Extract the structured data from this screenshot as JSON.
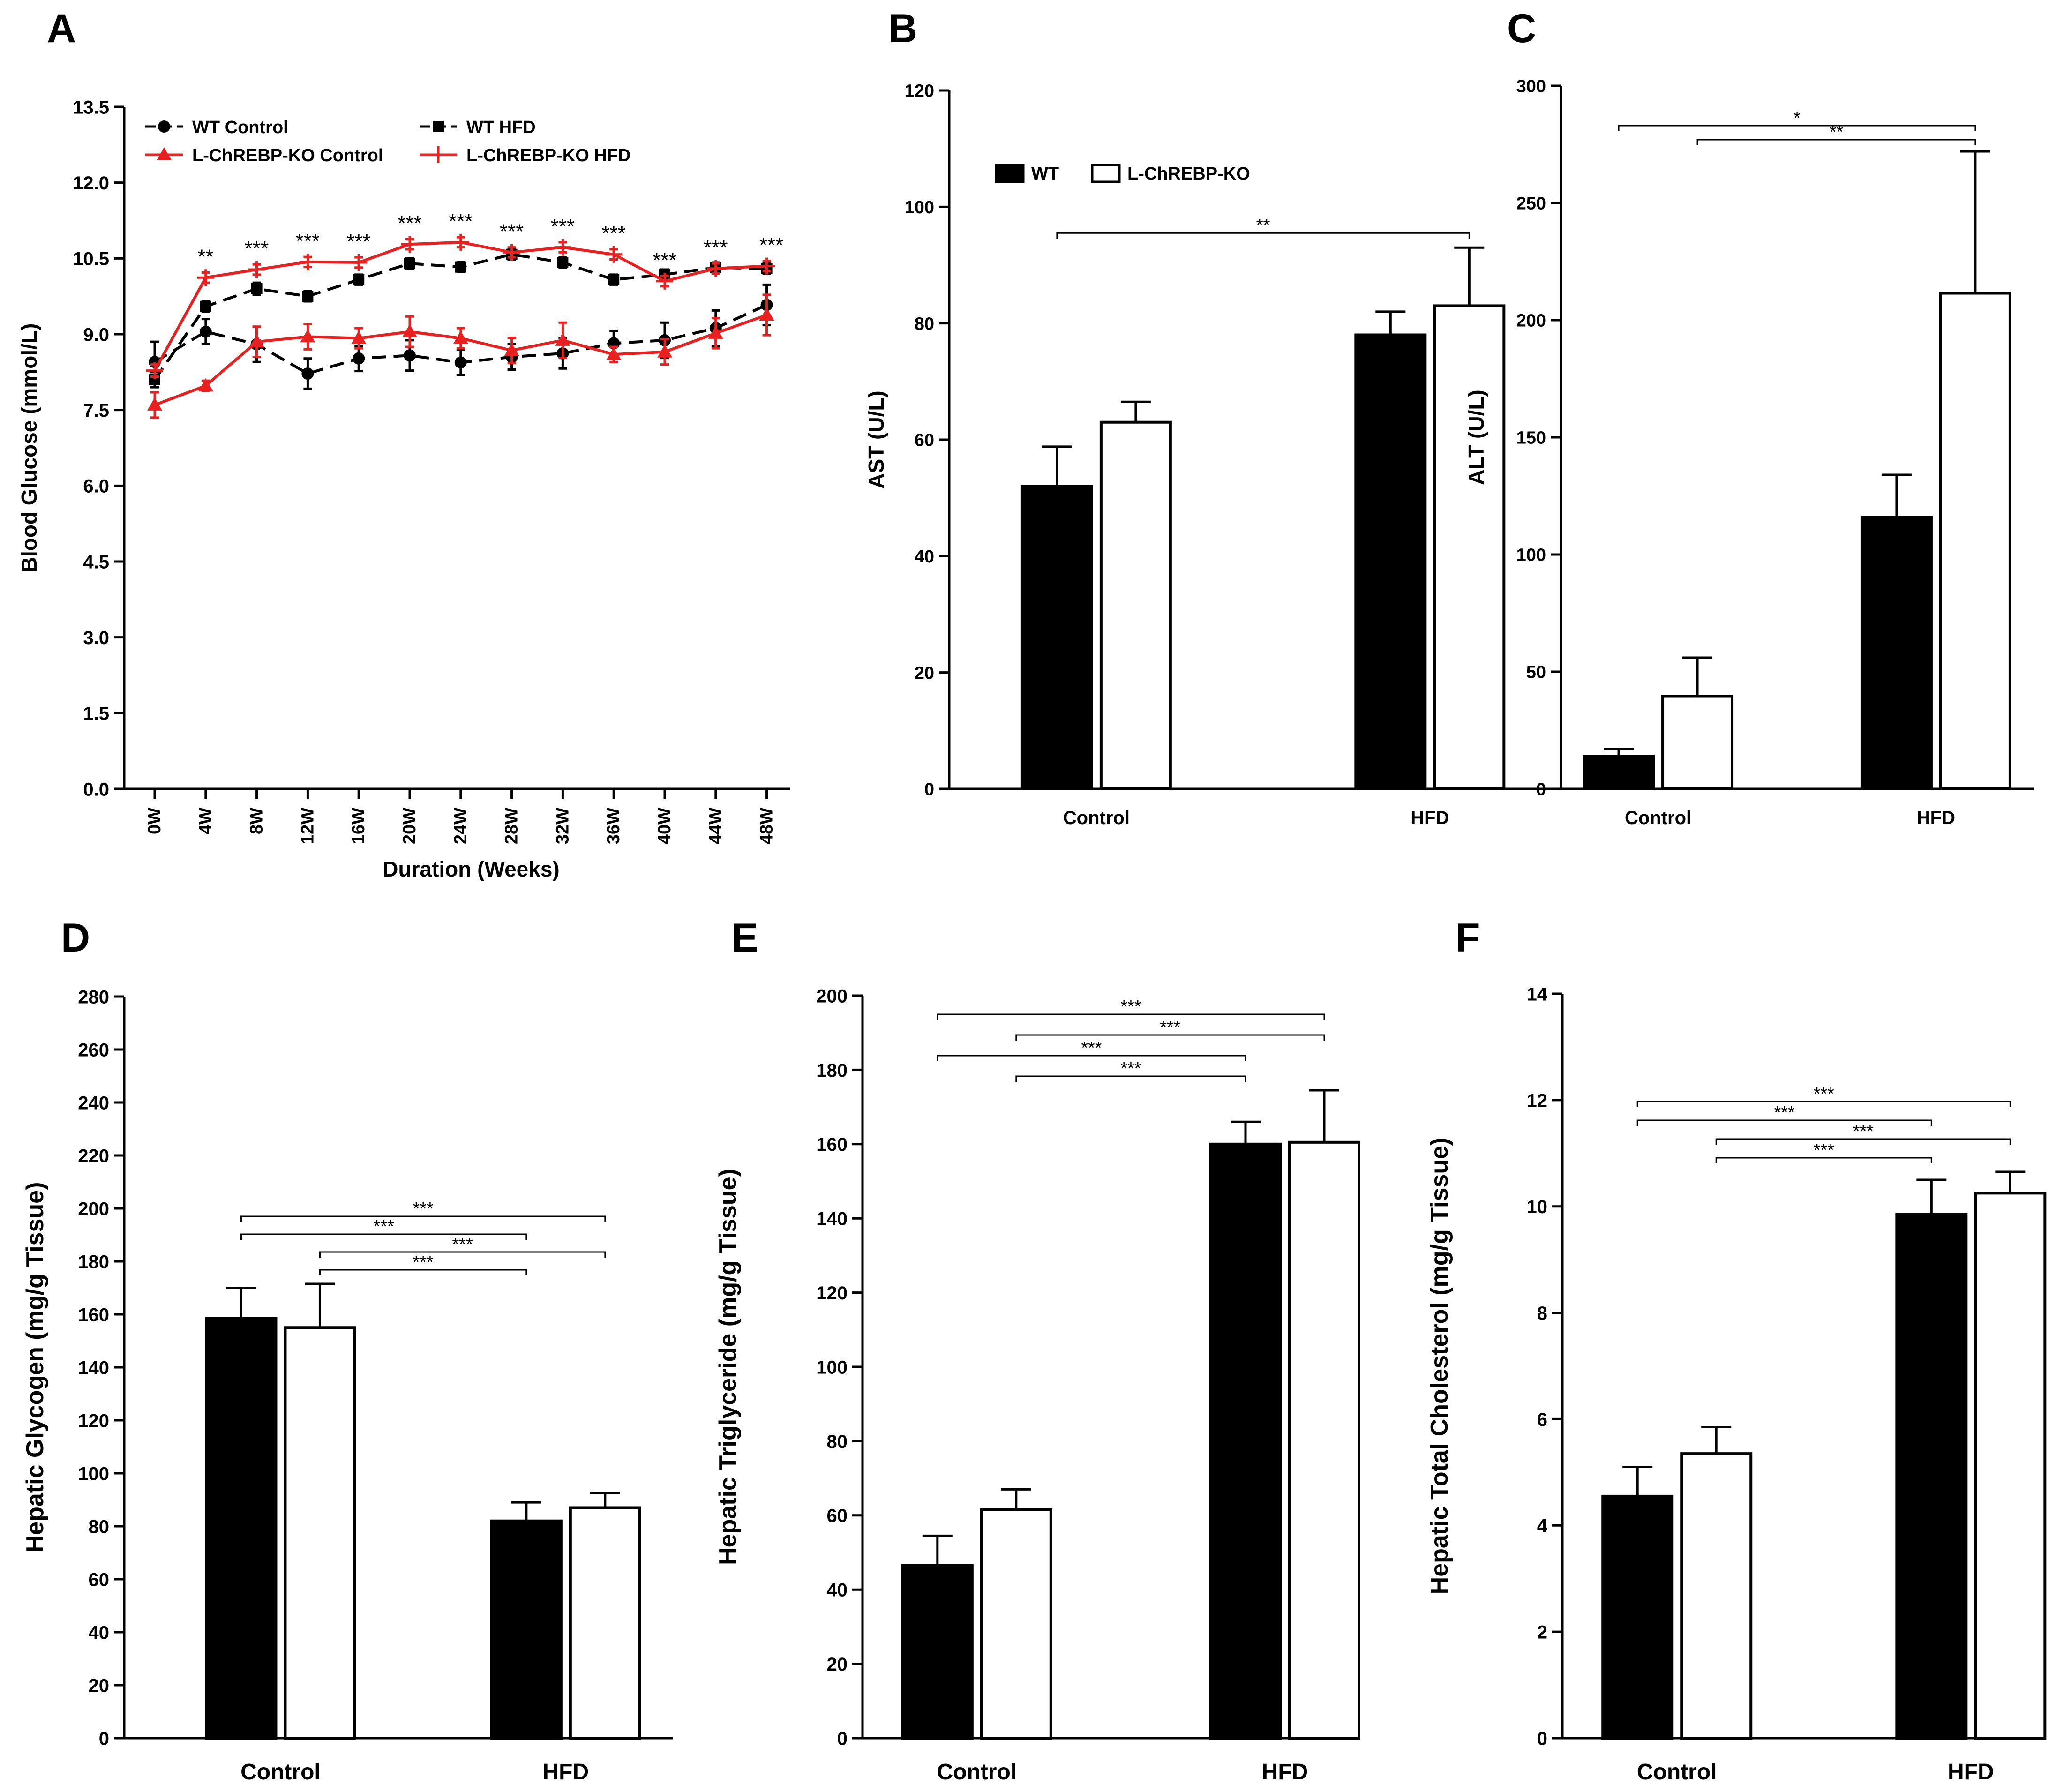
{
  "figure": {
    "panels": [
      "A",
      "B",
      "C",
      "D",
      "E",
      "F"
    ]
  },
  "colors": {
    "wt_bar": "#000000",
    "ko_bar": "#ffffff",
    "ko_line": "#e8201f",
    "wt_line": "#000000"
  },
  "chart_data": [
    {
      "panel": "A",
      "type": "line",
      "title": "",
      "xlabel": "Duration (Weeks)",
      "ylabel": "Blood Glucose (mmol/L)",
      "ylim": [
        0,
        13.5
      ],
      "yticks": [
        "0.0",
        "1.5",
        "3.0",
        "4.5",
        "6.0",
        "7.5",
        "9.0",
        "10.5",
        "12.0",
        "13.5"
      ],
      "categories": [
        "0W",
        "4W",
        "8W",
        "12W",
        "16W",
        "20W",
        "24W",
        "28W",
        "32W",
        "36W",
        "40W",
        "44W",
        "48W"
      ],
      "series": [
        {
          "name": "WT Control",
          "marker": "circle",
          "values": [
            8.45,
            9.05,
            8.8,
            8.22,
            8.52,
            8.58,
            8.44,
            8.55,
            8.62,
            8.82,
            8.88,
            9.12,
            9.58
          ],
          "errors": [
            0.4,
            0.25,
            0.35,
            0.3,
            0.25,
            0.3,
            0.25,
            0.25,
            0.3,
            0.25,
            0.35,
            0.35,
            0.4
          ]
        },
        {
          "name": "WT HFD",
          "marker": "square",
          "values": [
            8.1,
            9.55,
            9.9,
            9.75,
            10.08,
            10.4,
            10.33,
            10.58,
            10.42,
            10.08,
            10.18,
            10.32,
            10.3
          ],
          "errors": [
            0.15,
            0.1,
            0.12,
            0.1,
            0.1,
            0.1,
            0.1,
            0.1,
            0.1,
            0.1,
            0.1,
            0.1,
            0.1
          ]
        },
        {
          "name": "L-ChREBP-KO Control",
          "marker": "triangle",
          "values": [
            7.6,
            7.98,
            8.85,
            8.95,
            8.92,
            9.05,
            8.92,
            8.68,
            8.88,
            8.6,
            8.65,
            9.02,
            9.38
          ],
          "errors": [
            0.25,
            0.1,
            0.3,
            0.25,
            0.2,
            0.3,
            0.2,
            0.25,
            0.35,
            0.15,
            0.25,
            0.3,
            0.4
          ]
        },
        {
          "name": "L-ChREBP-KO HFD",
          "marker": "plus",
          "values": [
            8.28,
            10.12,
            10.28,
            10.43,
            10.42,
            10.78,
            10.82,
            10.62,
            10.72,
            10.58,
            10.05,
            10.3,
            10.35
          ],
          "errors": [
            0.12,
            0.1,
            0.1,
            0.1,
            0.1,
            0.1,
            0.1,
            0.1,
            0.1,
            0.1,
            0.1,
            0.1,
            0.1
          ]
        }
      ],
      "significance": [
        "",
        "**",
        "***",
        "***",
        "***",
        "***",
        "***",
        "***",
        "***",
        "***",
        "***",
        "***",
        "***"
      ],
      "legend": "top-left"
    },
    {
      "panel": "B",
      "type": "bar",
      "xlabel": "",
      "ylabel": "AST (U/L)",
      "ylim": [
        0,
        120
      ],
      "yticks": [
        "0",
        "20",
        "40",
        "60",
        "80",
        "100",
        "120"
      ],
      "categories": [
        "Control",
        "HFD"
      ],
      "series": [
        {
          "name": "WT",
          "values": [
            52,
            78
          ],
          "errors": [
            6.8,
            4
          ]
        },
        {
          "name": "L-ChREBP-KO",
          "values": [
            63,
            83
          ],
          "errors": [
            3.5,
            10
          ]
        }
      ],
      "legend": "top-left",
      "brackets": [
        {
          "from": [
            0,
            0
          ],
          "to": [
            1,
            1
          ],
          "label": "**",
          "level": 0
        }
      ]
    },
    {
      "panel": "C",
      "type": "bar",
      "xlabel": "",
      "ylabel": "ALT (U/L)",
      "ylim": [
        0,
        300
      ],
      "yticks": [
        "0",
        "50",
        "100",
        "150",
        "200",
        "250",
        "300"
      ],
      "categories": [
        "Control",
        "HFD"
      ],
      "series": [
        {
          "name": "WT",
          "values": [
            14,
            116
          ],
          "errors": [
            3,
            18
          ]
        },
        {
          "name": "L-ChREBP-KO",
          "values": [
            39.5,
            211.5
          ],
          "errors": [
            16.5,
            60.5
          ]
        }
      ],
      "brackets": [
        {
          "from": [
            0,
            0
          ],
          "to": [
            1,
            1
          ],
          "label": "*",
          "level": 1
        },
        {
          "from": [
            0,
            1
          ],
          "to": [
            1,
            1
          ],
          "label": "**",
          "level": 0
        }
      ]
    },
    {
      "panel": "D",
      "type": "bar",
      "xlabel": "",
      "ylabel": "Hepatic Glycogen (mg/g Tissue)",
      "ylim": [
        0,
        280
      ],
      "yticks": [
        "0",
        "20",
        "40",
        "60",
        "80",
        "100",
        "120",
        "140",
        "160",
        "180",
        "200",
        "220",
        "240",
        "260",
        "280"
      ],
      "categories": [
        "Control",
        "HFD"
      ],
      "series": [
        {
          "name": "WT",
          "values": [
            158.5,
            82
          ],
          "errors": [
            11.5,
            7
          ]
        },
        {
          "name": "L-ChREBP-KO",
          "values": [
            155,
            87
          ],
          "errors": [
            16.5,
            5.5
          ]
        }
      ],
      "brackets": [
        {
          "from": [
            0,
            0
          ],
          "to": [
            1,
            1
          ],
          "label": "***",
          "level": 3
        },
        {
          "from": [
            0,
            0
          ],
          "to": [
            1,
            0
          ],
          "label": "***",
          "level": 2
        },
        {
          "from": [
            0,
            1
          ],
          "to": [
            1,
            1
          ],
          "label": "***",
          "level": 1
        },
        {
          "from": [
            0,
            1
          ],
          "to": [
            1,
            0
          ],
          "label": "***",
          "level": 0
        }
      ]
    },
    {
      "panel": "E",
      "type": "bar",
      "xlabel": "",
      "ylabel": "Hepatic Triglyceride (mg/g Tissue)",
      "ylim": [
        0,
        200
      ],
      "yticks": [
        "0",
        "20",
        "40",
        "60",
        "80",
        "100",
        "120",
        "140",
        "160",
        "180",
        "200"
      ],
      "categories": [
        "Control",
        "HFD"
      ],
      "series": [
        {
          "name": "WT",
          "values": [
            46.5,
            160
          ],
          "errors": [
            8,
            6
          ]
        },
        {
          "name": "L-ChREBP-KO",
          "values": [
            61.5,
            160.5
          ],
          "errors": [
            5.5,
            14
          ]
        }
      ],
      "brackets": [
        {
          "from": [
            0,
            0
          ],
          "to": [
            1,
            1
          ],
          "label": "***",
          "level": 3
        },
        {
          "from": [
            0,
            1
          ],
          "to": [
            1,
            1
          ],
          "label": "***",
          "level": 2
        },
        {
          "from": [
            0,
            0
          ],
          "to": [
            1,
            0
          ],
          "label": "***",
          "level": 1
        },
        {
          "from": [
            0,
            1
          ],
          "to": [
            1,
            0
          ],
          "label": "***",
          "level": 0
        }
      ]
    },
    {
      "panel": "F",
      "type": "bar",
      "xlabel": "",
      "ylabel": "Hepatic Total Cholesterol (mg/g Tissue)",
      "ylim": [
        0,
        14
      ],
      "yticks": [
        "0",
        "2",
        "4",
        "6",
        "8",
        "10",
        "12",
        "14"
      ],
      "categories": [
        "Control",
        "HFD"
      ],
      "series": [
        {
          "name": "WT",
          "values": [
            4.55,
            9.85
          ],
          "errors": [
            0.55,
            0.65
          ]
        },
        {
          "name": "L-ChREBP-KO",
          "values": [
            5.35,
            10.25
          ],
          "errors": [
            0.5,
            0.4
          ]
        }
      ],
      "brackets": [
        {
          "from": [
            0,
            0
          ],
          "to": [
            1,
            1
          ],
          "label": "***",
          "level": 3
        },
        {
          "from": [
            0,
            0
          ],
          "to": [
            1,
            0
          ],
          "label": "***",
          "level": 2
        },
        {
          "from": [
            0,
            1
          ],
          "to": [
            1,
            1
          ],
          "label": "***",
          "level": 1
        },
        {
          "from": [
            0,
            1
          ],
          "to": [
            1,
            0
          ],
          "label": "***",
          "level": 0
        }
      ]
    }
  ]
}
